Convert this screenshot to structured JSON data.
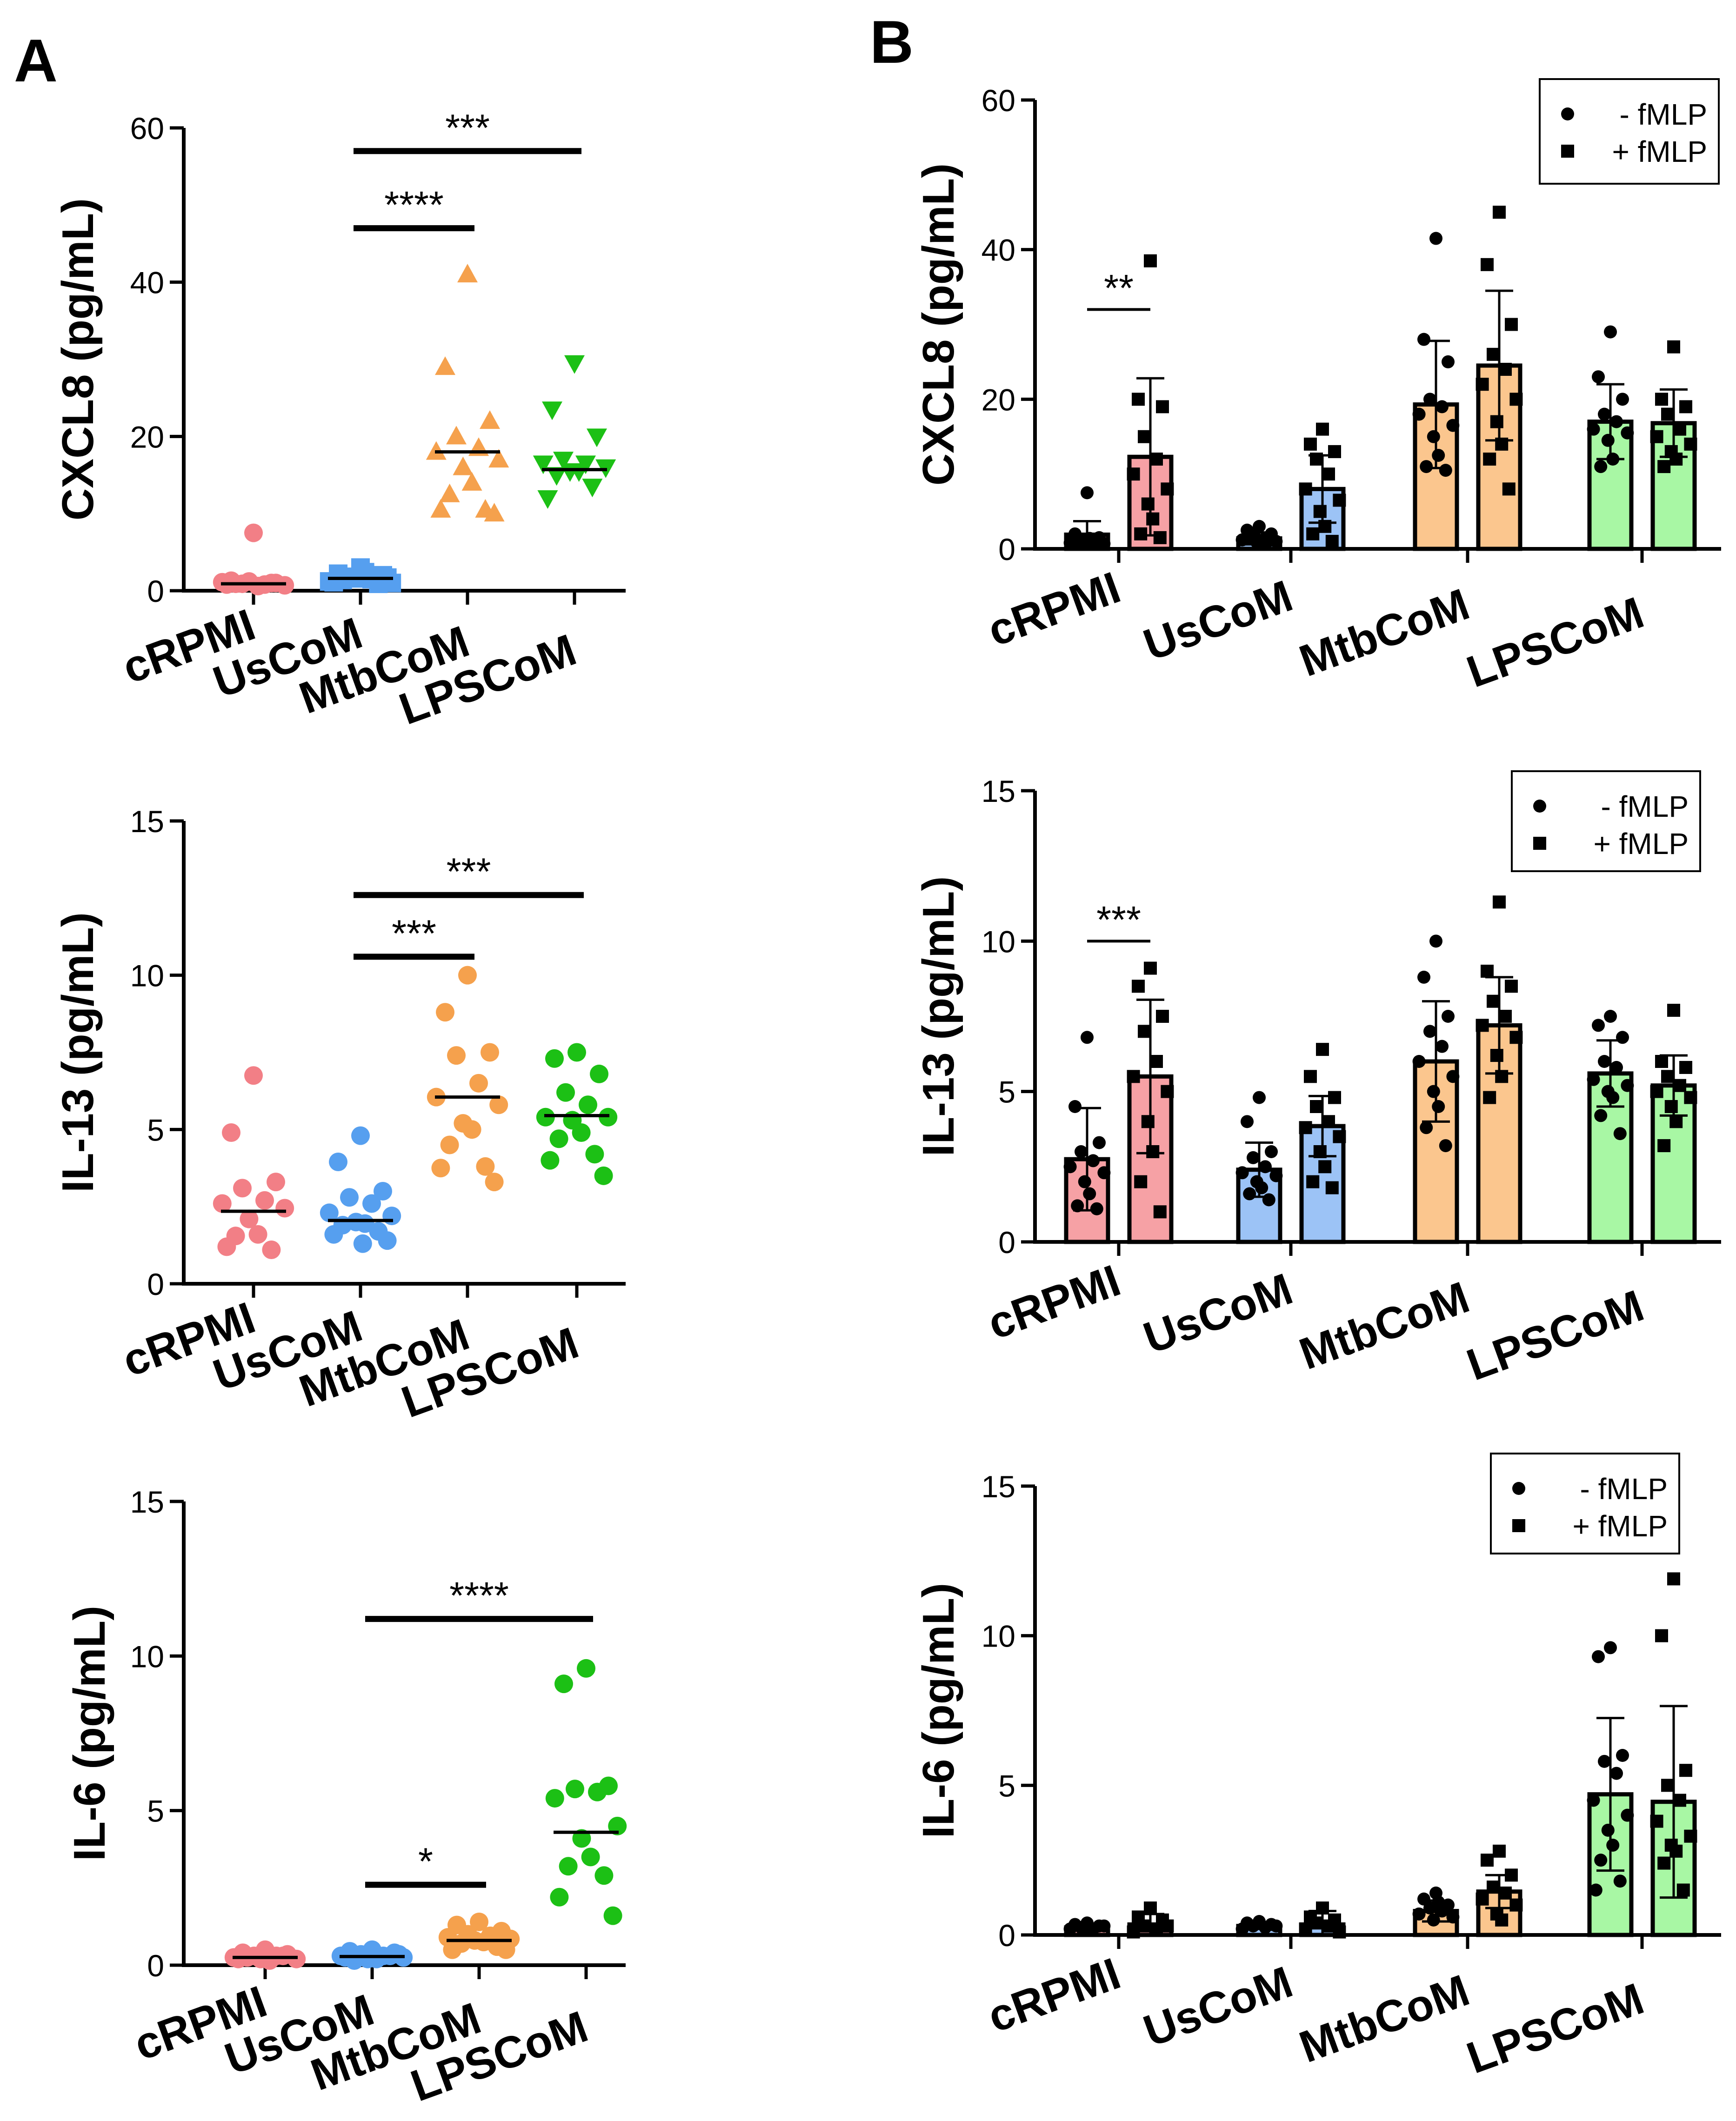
{
  "panels": {
    "a": "A",
    "b": "B"
  },
  "colors": {
    "cRPMI": "#f27f86",
    "UsCoM": "#569fef",
    "MtbCoM": "#f5a14d",
    "LPSCoM": "#1cc015",
    "barRPMI": "#f6a1a5",
    "barUs": "#9cc3f6",
    "barMtb": "#fbc68e",
    "barLPS": "#a8f7a4"
  },
  "legend": {
    "minus": "- fMLP",
    "plus": "+ fMLP"
  },
  "chart_data": [
    {
      "id": "a1",
      "panel": "A",
      "type": "scatter",
      "ylabel": "CXCL8 (pg/mL)",
      "ylim": [
        0,
        60
      ],
      "yticks": [
        "0",
        "20",
        "40",
        "60"
      ],
      "categories": [
        "cRPMI",
        "UsCoM",
        "MtbCoM",
        "LPSCoM"
      ],
      "markers": [
        "circle",
        "square",
        "triangle-up",
        "triangle-down"
      ],
      "groups": [
        {
          "name": "cRPMI",
          "values": [
            7.5,
            1.3,
            1.0,
            0.9,
            0.8,
            1.1,
            0.7,
            1.2,
            0.6,
            0.9,
            1.0,
            0.8
          ],
          "median": 0.9
        },
        {
          "name": "UsCoM",
          "values": [
            3.0,
            2.2,
            2.0,
            1.8,
            1.5,
            1.2,
            1.0,
            1.6,
            2.4,
            1.4,
            0.9,
            1.1,
            1.7
          ],
          "median": 1.6
        },
        {
          "name": "MtbCoM",
          "values": [
            41.0,
            29.0,
            22.0,
            20.0,
            18.5,
            18.0,
            17.0,
            16.0,
            14.0,
            12.5,
            10.5,
            10.5,
            10.0
          ],
          "median": 18.0
        },
        {
          "name": "LPSCoM",
          "values": [
            29.5,
            23.5,
            20.0,
            17.0,
            16.5,
            16.5,
            16.0,
            15.5,
            15.5,
            15.0,
            13.5,
            12.0
          ],
          "median": 15.7
        }
      ],
      "significance": [
        {
          "from": "UsCoM",
          "to": "LPSCoM",
          "y": 57,
          "label": "***"
        },
        {
          "from": "UsCoM",
          "to": "MtbCoM",
          "y": 47,
          "label": "****"
        }
      ]
    },
    {
      "id": "a2",
      "panel": "A",
      "type": "scatter",
      "ylabel": "IL-13 (pg/mL)",
      "ylim": [
        0,
        15
      ],
      "yticks": [
        "0",
        "5",
        "10",
        "15"
      ],
      "categories": [
        "cRPMI",
        "UsCoM",
        "MtbCoM",
        "LPSCoM"
      ],
      "markers": [
        "circle",
        "circle",
        "circle",
        "circle"
      ],
      "groups": [
        {
          "name": "cRPMI",
          "values": [
            6.75,
            4.9,
            3.3,
            3.1,
            2.7,
            2.6,
            2.45,
            2.1,
            1.6,
            1.55,
            1.1,
            1.2
          ],
          "median": 2.35
        },
        {
          "name": "UsCoM",
          "values": [
            4.8,
            3.95,
            3.0,
            2.8,
            2.6,
            2.3,
            2.2,
            2.0,
            1.95,
            1.9,
            1.7,
            1.6,
            1.4,
            1.3
          ],
          "median": 2.05
        },
        {
          "name": "MtbCoM",
          "values": [
            10.0,
            8.8,
            7.5,
            7.4,
            6.5,
            6.05,
            5.8,
            5.2,
            5.0,
            4.5,
            3.8,
            3.75,
            3.3
          ],
          "median": 6.05
        },
        {
          "name": "LPSCoM",
          "values": [
            7.5,
            7.3,
            6.8,
            6.2,
            5.8,
            5.4,
            5.4,
            5.3,
            4.9,
            4.7,
            4.2,
            4.0,
            3.5
          ],
          "median": 5.45
        }
      ],
      "significance": [
        {
          "from": "UsCoM",
          "to": "LPSCoM",
          "y": 12.6,
          "label": "***"
        },
        {
          "from": "UsCoM",
          "to": "MtbCoM",
          "y": 10.6,
          "label": "***"
        }
      ]
    },
    {
      "id": "a3",
      "panel": "A",
      "type": "scatter",
      "ylabel": "IL-6 (pg/mL)",
      "ylim": [
        0,
        15
      ],
      "yticks": [
        "0",
        "5",
        "10",
        "15"
      ],
      "categories": [
        "cRPMI",
        "UsCoM",
        "MtbCoM",
        "LPSCoM"
      ],
      "markers": [
        "circle",
        "circle",
        "circle",
        "circle"
      ],
      "groups": [
        {
          "name": "cRPMI",
          "values": [
            0.5,
            0.4,
            0.35,
            0.3,
            0.3,
            0.25,
            0.2,
            0.2,
            0.15,
            0.25,
            0.3,
            0.2
          ],
          "median": 0.25
        },
        {
          "name": "UsCoM",
          "values": [
            0.5,
            0.45,
            0.4,
            0.35,
            0.3,
            0.3,
            0.25,
            0.2,
            0.2,
            0.15,
            0.3,
            0.25,
            0.35
          ],
          "median": 0.28
        },
        {
          "name": "MtbCoM",
          "values": [
            1.4,
            1.3,
            1.1,
            1.0,
            0.95,
            0.9,
            0.85,
            0.8,
            0.75,
            0.7,
            0.6,
            0.5,
            0.5
          ],
          "median": 0.8
        },
        {
          "name": "LPSCoM",
          "values": [
            9.6,
            9.1,
            5.8,
            5.7,
            5.6,
            5.4,
            4.5,
            4.1,
            3.5,
            3.2,
            2.9,
            2.2,
            1.6
          ],
          "median": 4.3
        }
      ],
      "significance": [
        {
          "from": "UsCoM",
          "to": "LPSCoM",
          "y": 11.2,
          "label": "****"
        },
        {
          "from": "UsCoM",
          "to": "MtbCoM",
          "y": 2.6,
          "label": "*"
        }
      ]
    },
    {
      "id": "b1",
      "panel": "B",
      "type": "bar",
      "ylabel": "CXCL8 (pg/mL)",
      "ylim": [
        0,
        60
      ],
      "yticks": [
        "0",
        "20",
        "40",
        "60"
      ],
      "categories": [
        "cRPMI",
        "UsCoM",
        "MtbCoM",
        "LPSCoM"
      ],
      "series": [
        {
          "name": "- fMLP",
          "means": [
            1.9,
            1.4,
            19.3,
            17.0
          ],
          "sd": [
            1.8,
            0.8,
            8.5,
            5.0
          ],
          "points": [
            [
              7.5,
              2.0,
              1.5,
              1.2,
              1.0,
              0.8,
              0.7,
              0.6,
              1.4,
              0.9,
              1.1,
              1.3
            ],
            [
              3.0,
              2.5,
              2.0,
              1.7,
              1.4,
              1.2,
              1.0,
              0.9,
              0.8,
              1.5,
              1.1
            ],
            [
              41.5,
              28.0,
              25.0,
              20.0,
              19.0,
              18.0,
              16.5,
              15.0,
              12.5,
              11.0,
              10.5
            ],
            [
              29.0,
              23.0,
              20.0,
              18.0,
              17.0,
              16.0,
              15.5,
              14.5,
              12.0,
              11.0
            ]
          ]
        },
        {
          "name": "+ fMLP",
          "means": [
            12.3,
            8.0,
            24.5,
            16.8
          ],
          "sd": [
            10.5,
            4.5,
            10.0,
            4.5
          ],
          "points": [
            [
              38.5,
              20.0,
              19.0,
              15.0,
              12.0,
              10.0,
              8.0,
              6.0,
              4.0,
              2.0,
              1.5
            ],
            [
              16.0,
              14.0,
              13.0,
              12.0,
              10.0,
              8.0,
              6.5,
              5.0,
              3.0,
              2.0,
              1.0
            ],
            [
              45.0,
              38.0,
              30.0,
              26.0,
              24.0,
              22.0,
              20.0,
              17.0,
              14.0,
              12.0,
              8.0
            ],
            [
              27.0,
              20.0,
              19.0,
              18.0,
              16.0,
              15.0,
              14.0,
              13.0,
              12.0,
              11.0
            ]
          ]
        }
      ],
      "significance": [
        {
          "category": "cRPMI",
          "y": 32,
          "label": "**"
        }
      ]
    },
    {
      "id": "b2",
      "panel": "B",
      "type": "bar",
      "ylabel": "IL-13 (pg/mL)",
      "ylim": [
        0,
        15
      ],
      "yticks": [
        "0",
        "5",
        "10",
        "15"
      ],
      "categories": [
        "cRPMI",
        "UsCoM",
        "MtbCoM",
        "LPSCoM"
      ],
      "series": [
        {
          "name": "- fMLP",
          "means": [
            2.75,
            2.4,
            6.0,
            5.6
          ],
          "sd": [
            1.7,
            0.9,
            2.0,
            1.1
          ],
          "points": [
            [
              6.8,
              4.5,
              3.3,
              3.0,
              2.7,
              2.5,
              2.3,
              2.0,
              1.6,
              1.2,
              1.1
            ],
            [
              4.8,
              4.0,
              3.0,
              2.8,
              2.5,
              2.3,
              2.2,
              2.0,
              1.8,
              1.6,
              1.4
            ],
            [
              10.0,
              8.8,
              7.5,
              7.0,
              6.5,
              6.0,
              5.5,
              5.0,
              4.5,
              3.8,
              3.2
            ],
            [
              7.5,
              7.2,
              6.8,
              6.0,
              5.8,
              5.4,
              5.2,
              5.0,
              4.8,
              4.2,
              3.6
            ]
          ]
        },
        {
          "name": "+ fMLP",
          "means": [
            5.5,
            3.85,
            7.2,
            5.2
          ],
          "sd": [
            2.55,
            1.0,
            1.6,
            1.0
          ],
          "points": [
            [
              9.1,
              8.5,
              7.5,
              7.0,
              6.0,
              5.5,
              5.0,
              4.0,
              3.0,
              2.0,
              1.0
            ],
            [
              6.4,
              5.5,
              4.8,
              4.5,
              4.0,
              3.8,
              3.5,
              3.0,
              2.5,
              2.0,
              1.8
            ],
            [
              11.3,
              9.0,
              8.5,
              8.0,
              7.5,
              7.2,
              6.8,
              6.2,
              5.5,
              4.8
            ],
            [
              7.7,
              6.0,
              5.8,
              5.5,
              5.2,
              5.0,
              4.8,
              4.5,
              4.0,
              3.2
            ]
          ]
        }
      ],
      "significance": [
        {
          "category": "cRPMI",
          "y": 10.0,
          "label": "***"
        }
      ]
    },
    {
      "id": "b3",
      "panel": "B",
      "type": "bar",
      "ylabel": "IL-6 (pg/mL)",
      "ylim": [
        0,
        15
      ],
      "yticks": [
        "0",
        "5",
        "10",
        "15"
      ],
      "categories": [
        "cRPMI",
        "UsCoM",
        "MtbCoM",
        "LPSCoM"
      ],
      "series": [
        {
          "name": "- fMLP",
          "means": [
            0.25,
            0.3,
            0.8,
            4.7
          ],
          "sd": [
            0.08,
            0.1,
            0.35,
            2.55
          ],
          "points": [
            [
              0.4,
              0.35,
              0.3,
              0.25,
              0.2,
              0.2,
              0.3,
              0.25
            ],
            [
              0.45,
              0.4,
              0.35,
              0.3,
              0.25,
              0.2,
              0.3
            ],
            [
              1.4,
              1.2,
              1.0,
              0.9,
              0.8,
              0.7,
              0.6,
              0.5,
              1.1
            ],
            [
              9.6,
              9.3,
              6.0,
              5.8,
              5.4,
              4.5,
              4.0,
              3.5,
              3.0,
              2.5,
              1.8,
              1.5
            ]
          ]
        },
        {
          "name": "+ fMLP",
          "means": [
            0.35,
            0.35,
            1.45,
            4.45
          ],
          "sd": [
            0.35,
            0.45,
            0.55,
            3.2
          ],
          "points": [
            [
              0.9,
              0.6,
              0.5,
              0.3,
              0.2,
              0.1,
              0.3
            ],
            [
              0.9,
              0.6,
              0.5,
              0.4,
              0.3,
              0.2,
              0.1
            ],
            [
              2.8,
              2.5,
              2.0,
              1.6,
              1.4,
              1.2,
              1.0,
              0.7,
              0.5
            ],
            [
              11.9,
              10.0,
              5.5,
              5.0,
              4.5,
              3.8,
              3.3,
              3.0,
              2.8,
              2.4,
              1.5
            ]
          ]
        }
      ]
    }
  ]
}
